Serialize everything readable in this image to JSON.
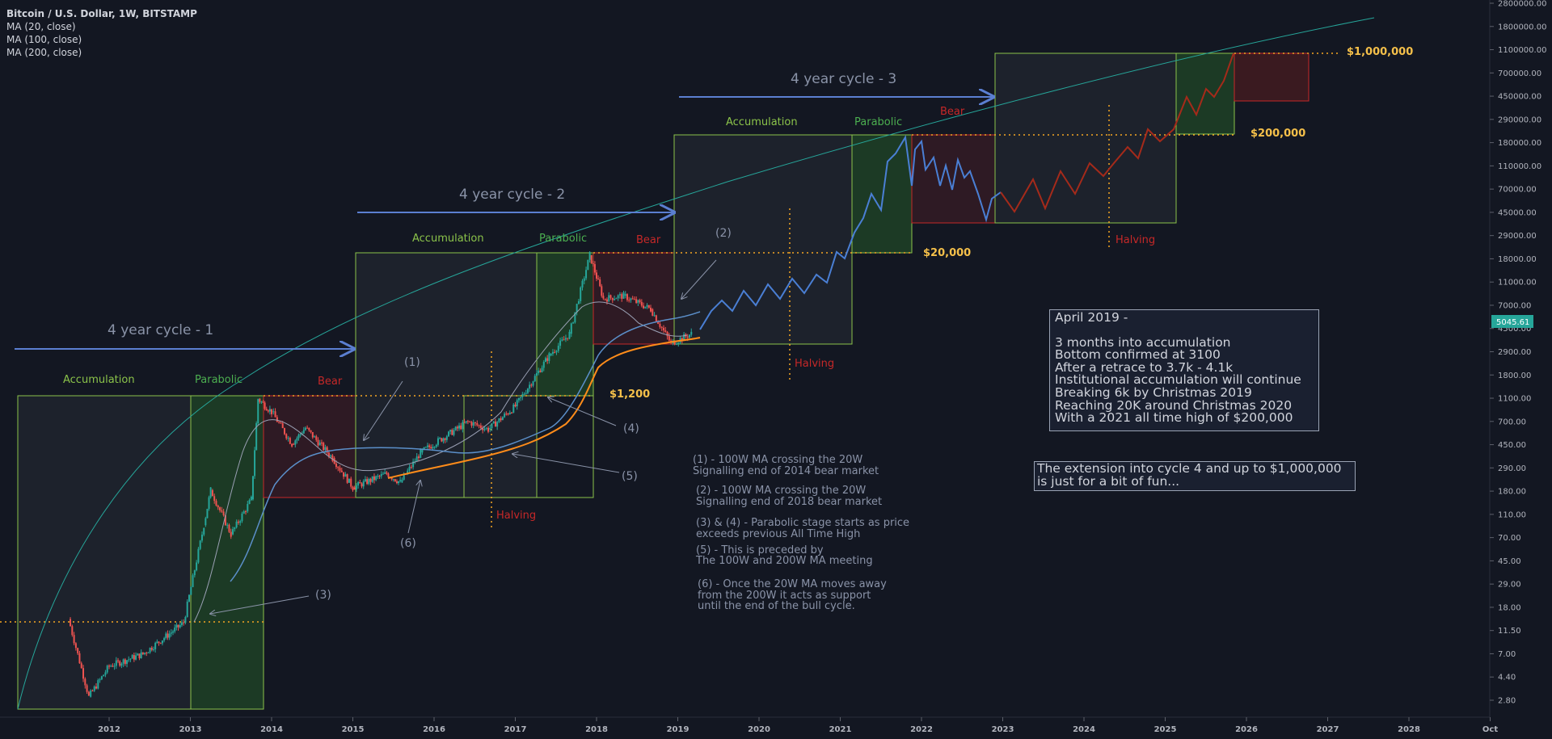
{
  "header": {
    "title": "Bitcoin / U.S. Dollar, 1W, BITSTAMP",
    "indicators": [
      "MA (20, close)",
      "MA (100, close)",
      "MA (200, close)"
    ]
  },
  "price_badge": "5045.61",
  "colors": {
    "background": "#131722",
    "accumulation": "#8bc34a",
    "parabolic": "#4caf50",
    "bear": "#c62828",
    "cycle_arrow": "#5b7fd1",
    "price_level": "#f5a623",
    "ma20": "#9aa0b4",
    "ma100": "#5b8fc9",
    "ma200": "#ff8c1a",
    "projection_blue": "#4a7fd4",
    "projection_red": "#a52a1a",
    "log_curve": "#26a69a"
  },
  "chart_data": {
    "type": "candlestick-annotated",
    "title": "Bitcoin / U.S. Dollar, 1W, BITSTAMP",
    "y_scale": "log",
    "y_ticks": [
      "2800000.00",
      "1800000.00",
      "1100000.00",
      "700000.00",
      "450000.00",
      "290000.00",
      "180000.00",
      "110000.00",
      "70000.00",
      "45000.00",
      "29000.00",
      "18000.00",
      "11000.00",
      "7000.00",
      "4500.00",
      "2900.00",
      "1800.00",
      "1100.00",
      "700.00",
      "450.00",
      "290.00",
      "180.00",
      "110.00",
      "70.00",
      "45.00",
      "29.00",
      "18.00",
      "11.50",
      "7.00",
      "4.40",
      "2.80"
    ],
    "x_ticks": [
      "2012",
      "2013",
      "2014",
      "2015",
      "2016",
      "2017",
      "2018",
      "2019",
      "2020",
      "2021",
      "2022",
      "2023",
      "2024",
      "2025",
      "2026",
      "2027",
      "2028",
      "Oct"
    ],
    "cycle_labels": [
      "4 year cycle - 1",
      "4 year cycle - 2",
      "4 year cycle - 3"
    ],
    "phase_labels": {
      "c1": [
        "Accumulation",
        "Parabolic",
        "Bear"
      ],
      "c2": [
        "Accumulation",
        "Parabolic",
        "Bear"
      ],
      "c3": [
        "Accumulation",
        "Parabolic",
        "Bear"
      ]
    },
    "halving_label": "Halving",
    "price_levels": [
      "$1,200",
      "$20,000",
      "$200,000",
      "$1,000,000"
    ],
    "markers": [
      "(1)",
      "(2)",
      "(3)",
      "(4)",
      "(5)",
      "(6)"
    ],
    "series": [
      {
        "name": "MA (20, close)"
      },
      {
        "name": "MA (100, close)"
      },
      {
        "name": "MA (200, close)"
      }
    ],
    "price_history": [
      {
        "x": "2011-07",
        "y": 14
      },
      {
        "x": "2011-10",
        "y": 3
      },
      {
        "x": "2012-01",
        "y": 5.5
      },
      {
        "x": "2012-06",
        "y": 7
      },
      {
        "x": "2012-12",
        "y": 13
      },
      {
        "x": "2013-03",
        "y": 90
      },
      {
        "x": "2013-04",
        "y": 180
      },
      {
        "x": "2013-07",
        "y": 75
      },
      {
        "x": "2013-10",
        "y": 150
      },
      {
        "x": "2013-11",
        "y": 1100
      },
      {
        "x": "2014-01",
        "y": 850
      },
      {
        "x": "2014-04",
        "y": 450
      },
      {
        "x": "2014-06",
        "y": 620
      },
      {
        "x": "2014-10",
        "y": 340
      },
      {
        "x": "2015-01",
        "y": 190
      },
      {
        "x": "2015-06",
        "y": 250
      },
      {
        "x": "2015-08",
        "y": 210
      },
      {
        "x": "2015-11",
        "y": 380
      },
      {
        "x": "2016-06",
        "y": 700
      },
      {
        "x": "2016-09",
        "y": 600
      },
      {
        "x": "2017-01",
        "y": 950
      },
      {
        "x": "2017-06",
        "y": 2600
      },
      {
        "x": "2017-09",
        "y": 4000
      },
      {
        "x": "2017-12",
        "y": 19000
      },
      {
        "x": "2018-02",
        "y": 8000
      },
      {
        "x": "2018-05",
        "y": 8500
      },
      {
        "x": "2018-09",
        "y": 6500
      },
      {
        "x": "2018-12",
        "y": 3300
      },
      {
        "x": "2019-03",
        "y": 4000
      }
    ]
  },
  "notes": {
    "n1a": "(1) - 100W MA crossing the 20W",
    "n1b": "Signalling end of 2014 bear market",
    "n2a": "(2) - 100W MA crossing the 20W",
    "n2b": "Signalling end of 2018 bear market",
    "n3a": "(3) & (4) - Parabolic stage starts as price",
    "n3b": "exceeds previous All Time High",
    "n5a": "(5) - This is preceded by",
    "n5b": "The 100W and 200W MA meeting",
    "n6a": "(6) - Once the 20W MA moves away",
    "n6b": "from the 200W it acts as support",
    "n6c": "until the end of the bull cycle."
  },
  "forecast_box": {
    "title": "April 2019 -",
    "lines": [
      "3 months into accumulation",
      "Bottom confirmed at 3100",
      "After a retrace to 3.7k - 4.1k",
      "Institutional accumulation will continue",
      "Breaking 6k by Christmas 2019",
      "Reaching 20K around Christmas 2020",
      "With a 2021 all time high of $200,000"
    ]
  },
  "extension_box": {
    "line1": "The extension into cycle 4 and up to $1,000,000",
    "line2": "is just for a bit of fun..."
  }
}
